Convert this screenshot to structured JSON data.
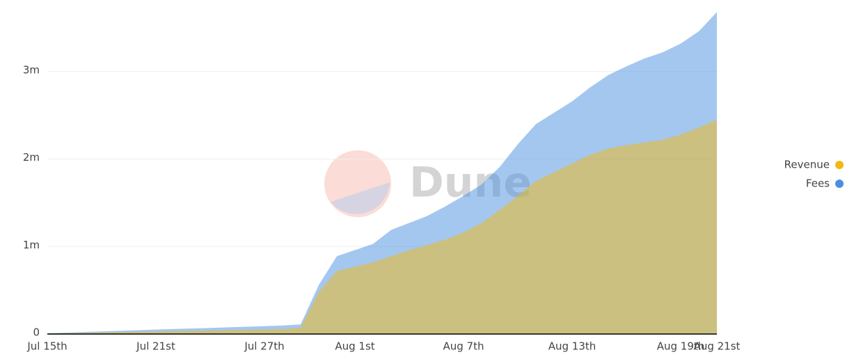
{
  "chart_data": {
    "type": "area",
    "watermark": "Dune",
    "categories": [
      "Jul 15th",
      null,
      null,
      null,
      null,
      null,
      "Jul 21st",
      null,
      null,
      null,
      null,
      null,
      "Jul 27th",
      null,
      null,
      null,
      null,
      "Aug 1st",
      null,
      null,
      null,
      null,
      null,
      "Aug 7th",
      null,
      null,
      null,
      null,
      null,
      "Aug 13th",
      null,
      null,
      null,
      null,
      null,
      "Aug 19th",
      null,
      "Aug 21st"
    ],
    "series": [
      {
        "name": "Fees",
        "color": "#4a90e2",
        "values": [
          10000,
          16000,
          23000,
          30000,
          37000,
          44000,
          51000,
          58000,
          64000,
          70000,
          77000,
          84000,
          90000,
          97000,
          110000,
          560000,
          890000,
          960000,
          1030000,
          1190000,
          1270000,
          1350000,
          1460000,
          1580000,
          1710000,
          1910000,
          2170000,
          2400000,
          2530000,
          2660000,
          2820000,
          2960000,
          3060000,
          3150000,
          3220000,
          3320000,
          3460000,
          3680000
        ]
      },
      {
        "name": "Revenue",
        "color": "#f2b90f",
        "values": [
          5000,
          9000,
          13000,
          17000,
          21000,
          25000,
          29000,
          33000,
          37000,
          41000,
          45000,
          49000,
          53000,
          57000,
          75000,
          480000,
          720000,
          770000,
          820000,
          890000,
          960000,
          1020000,
          1080000,
          1160000,
          1270000,
          1420000,
          1580000,
          1750000,
          1850000,
          1950000,
          2050000,
          2120000,
          2160000,
          2190000,
          2220000,
          2280000,
          2360000,
          2450000
        ]
      }
    ],
    "legend_order": [
      1,
      0
    ],
    "ylim": [
      0,
      3800000
    ],
    "yticks": [
      0,
      {
        "value": 1000000,
        "label": "1m"
      },
      {
        "value": 2000000,
        "label": "2m"
      },
      {
        "value": 3000000,
        "label": "3m"
      }
    ],
    "grid": true,
    "legend": "right"
  }
}
